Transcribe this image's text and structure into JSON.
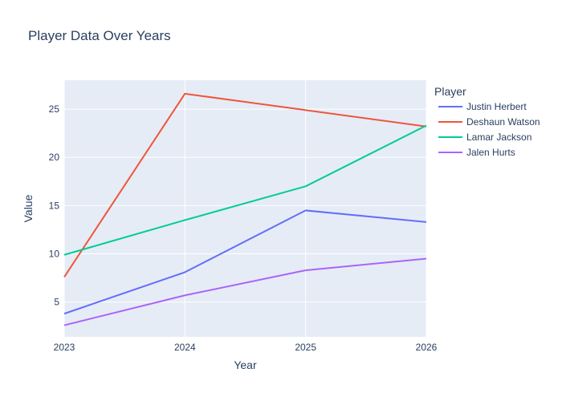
{
  "chart_data": {
    "type": "line",
    "title": "Player Data Over Years",
    "xlabel": "Year",
    "ylabel": "Value",
    "x": [
      2023,
      2024,
      2025,
      2026
    ],
    "x_tick_labels": [
      "2023",
      "2024",
      "2025",
      "2026"
    ],
    "xlim": [
      2023,
      2026
    ],
    "ylim": [
      1.4,
      28
    ],
    "y_ticks": [
      5,
      10,
      15,
      20,
      25
    ],
    "y_tick_labels": [
      "5",
      "10",
      "15",
      "20",
      "25"
    ],
    "grid": true,
    "legend_title": "Player",
    "legend_position": "right",
    "plot_background": "#e5ecf6",
    "series": [
      {
        "name": "Justin Herbert",
        "color": "#636efa",
        "values": [
          3.8,
          8.1,
          14.5,
          13.3
        ]
      },
      {
        "name": "Deshaun Watson",
        "color": "#ef553b",
        "values": [
          7.6,
          26.6,
          24.9,
          23.2
        ]
      },
      {
        "name": "Lamar Jackson",
        "color": "#00cc96",
        "values": [
          9.9,
          13.5,
          17.0,
          23.3
        ]
      },
      {
        "name": "Jalen Hurts",
        "color": "#ab63fa",
        "values": [
          2.6,
          5.7,
          8.3,
          9.5
        ]
      }
    ]
  }
}
